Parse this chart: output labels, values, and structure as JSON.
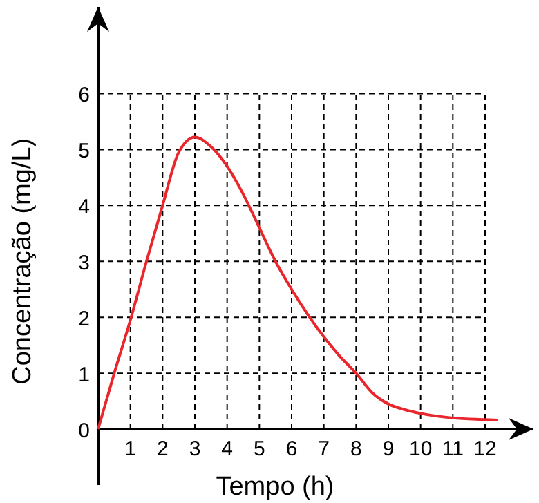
{
  "chart_data": {
    "type": "line",
    "xlabel": "Tempo (h)",
    "ylabel": "Concentração (mg/L)",
    "x": [
      0,
      0.5,
      1,
      1.5,
      2,
      2.5,
      3,
      3.5,
      4,
      4.5,
      5,
      5.5,
      6,
      6.5,
      7,
      7.5,
      8,
      8.5,
      9,
      9.5,
      10,
      11,
      12,
      12.4
    ],
    "series": [
      {
        "color": "#e8262b",
        "values": [
          0,
          1.0,
          1.95,
          3.0,
          4.0,
          4.95,
          5.22,
          5.05,
          4.7,
          4.2,
          3.6,
          3.0,
          2.5,
          2.05,
          1.65,
          1.3,
          1.0,
          0.65,
          0.45,
          0.35,
          0.28,
          0.2,
          0.17,
          0.16
        ]
      }
    ],
    "xlim": [
      0,
      13.5
    ],
    "ylim": [
      -1,
      7.55
    ],
    "xticks": [
      1,
      2,
      3,
      4,
      5,
      6,
      7,
      8,
      9,
      10,
      11,
      12
    ],
    "yticks": [
      0,
      1,
      2,
      3,
      4,
      5,
      6
    ],
    "grid": true,
    "marker": "none",
    "line_style": "solid"
  }
}
